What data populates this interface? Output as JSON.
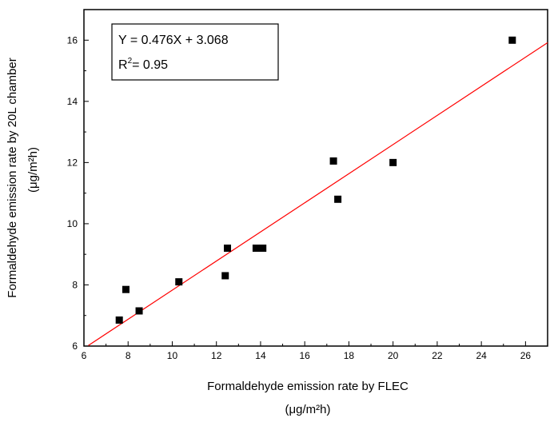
{
  "chart_data": {
    "type": "scatter",
    "xlabel": "Formaldehyde emission rate by FLEC",
    "xunit": "(μg/m²h)",
    "ylabel": "Formaldehyde emission rate by 20L chamber",
    "yunit": "(μg/m²h)",
    "xlim": [
      6,
      27
    ],
    "ylim": [
      6,
      17
    ],
    "xticks": [
      6,
      8,
      10,
      12,
      14,
      16,
      18,
      20,
      22,
      24,
      26
    ],
    "yticks": [
      6,
      8,
      10,
      12,
      14,
      16
    ],
    "points": [
      {
        "x": 7.6,
        "y": 6.85
      },
      {
        "x": 7.9,
        "y": 7.85
      },
      {
        "x": 8.5,
        "y": 7.15
      },
      {
        "x": 10.3,
        "y": 8.1
      },
      {
        "x": 12.4,
        "y": 8.3
      },
      {
        "x": 12.5,
        "y": 9.2
      },
      {
        "x": 13.8,
        "y": 9.2
      },
      {
        "x": 14.1,
        "y": 9.2
      },
      {
        "x": 17.3,
        "y": 12.05
      },
      {
        "x": 17.5,
        "y": 10.8
      },
      {
        "x": 20.0,
        "y": 12.0
      },
      {
        "x": 25.4,
        "y": 16.0
      }
    ],
    "fit": {
      "slope": 0.476,
      "intercept": 3.068,
      "equation": "Y = 0.476X + 3.068",
      "r2_label": "R",
      "r2_sup": "2",
      "r2_value": "= 0.95",
      "line_color": "#ff0000"
    },
    "marker_color": "#000000",
    "grid": false,
    "annotation_position": "top-left"
  }
}
